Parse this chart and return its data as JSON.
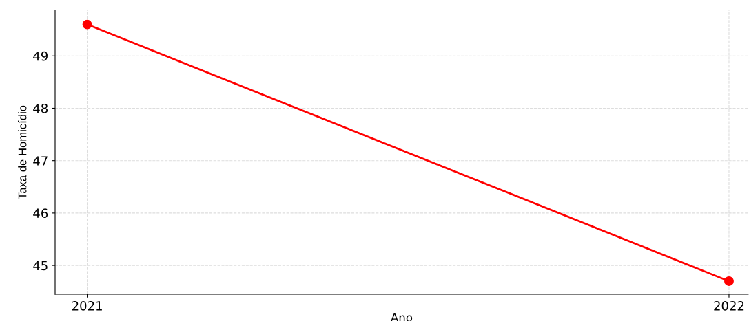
{
  "chart_data": {
    "type": "line",
    "xlabel": "Ano",
    "ylabel": "Taxa de Homicídio",
    "x": [
      2021,
      2022
    ],
    "series": [
      {
        "color": "#ff0000",
        "values": [
          49.6,
          44.7
        ]
      }
    ],
    "xlim": [
      2020.95,
      2022.03
    ],
    "xticks": [
      2021,
      2022
    ],
    "ylim": [
      44.45,
      49.87
    ],
    "yticks": [
      45,
      46,
      47,
      48,
      49
    ],
    "grid": true,
    "marker": "circle",
    "line_style": "solid"
  }
}
